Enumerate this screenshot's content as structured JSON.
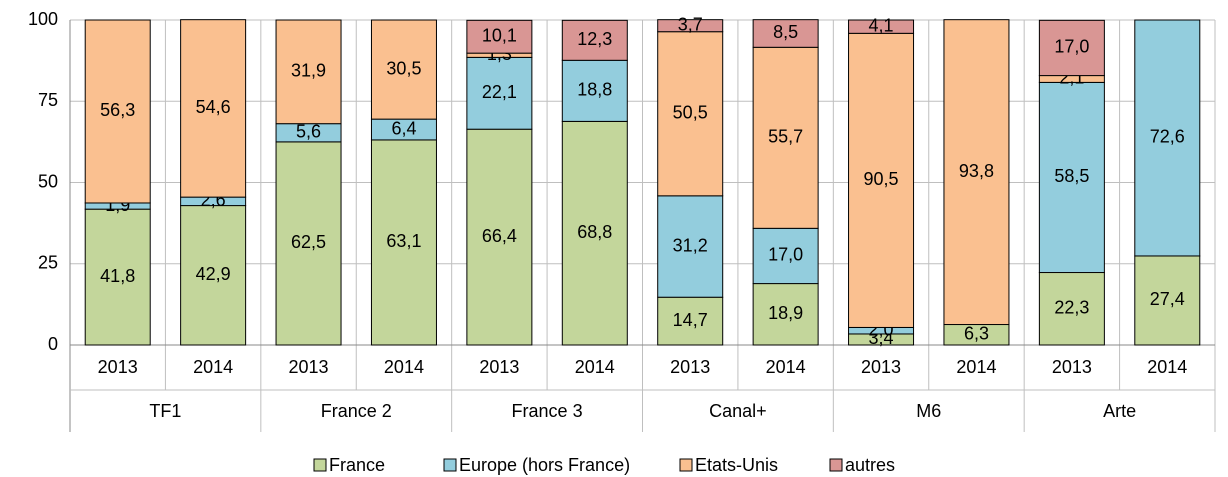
{
  "chart_data": {
    "type": "stacked_bar",
    "categories": [
      "2013",
      "2014",
      "2013",
      "2014",
      "2013",
      "2014",
      "2013",
      "2014",
      "2013",
      "2014",
      "2013",
      "2014"
    ],
    "groups": [
      "TF1",
      "France 2",
      "France 3",
      "Canal+",
      "M6",
      "Arte"
    ],
    "series": [
      {
        "name": "France",
        "color": "#c3d69b",
        "values": [
          41.8,
          42.9,
          62.5,
          63.1,
          66.4,
          68.8,
          14.7,
          18.9,
          3.4,
          6.3,
          22.3,
          27.4
        ],
        "value_labels": [
          "41,8",
          "42,9",
          "62,5",
          "63,1",
          "66,4",
          "68,8",
          "14,7",
          "18,9",
          "3,4",
          "6,3",
          "22,3",
          "27,4"
        ]
      },
      {
        "name": "Europe (hors France)",
        "color": "#93cddd",
        "values": [
          1.9,
          2.6,
          5.6,
          6.4,
          22.1,
          18.8,
          31.2,
          17.0,
          2.0,
          null,
          58.5,
          72.6
        ],
        "value_labels": [
          "1,9",
          "2,6",
          "5,6",
          "6,4",
          "22,1",
          "18,8",
          "31,2",
          "17,0",
          "2,0",
          null,
          "58,5",
          "72,6"
        ]
      },
      {
        "name": "Etats-Unis",
        "color": "#fac090",
        "values": [
          56.3,
          54.6,
          31.9,
          30.5,
          1.3,
          null,
          50.5,
          55.7,
          90.5,
          93.8,
          2.1,
          null
        ],
        "value_labels": [
          "56,3",
          "54,6",
          "31,9",
          "30,5",
          "1,3",
          null,
          "50,5",
          "55,7",
          "90,5",
          "93,8",
          "2,1",
          null
        ]
      },
      {
        "name": "autres",
        "color": "#d99694",
        "values": [
          null,
          null,
          null,
          null,
          10.1,
          12.3,
          3.7,
          8.5,
          4.1,
          null,
          17.0,
          null
        ],
        "value_labels": [
          null,
          null,
          null,
          null,
          "10,1",
          "12,3",
          "3,7",
          "8,5",
          "4,1",
          null,
          "17,0",
          null
        ]
      }
    ],
    "ylim": [
      0,
      100
    ],
    "yticks": [
      0,
      25,
      50,
      75,
      100
    ],
    "grid": true
  }
}
